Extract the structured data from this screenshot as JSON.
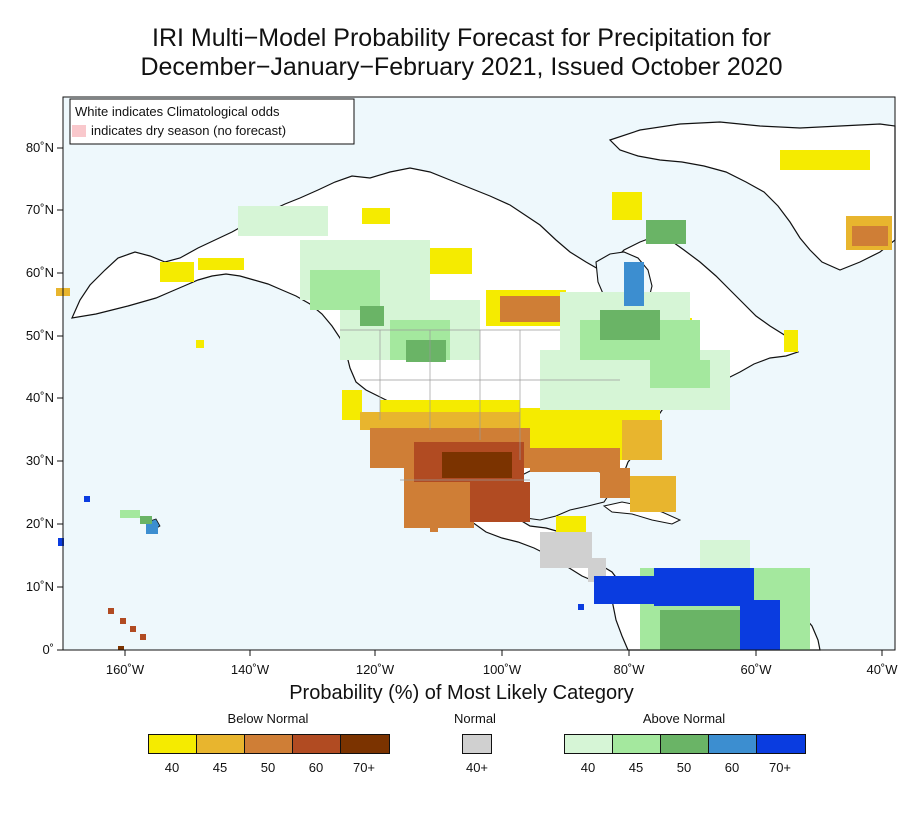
{
  "title_line1": "IRI Multi−Model Probability Forecast for Precipitation for",
  "title_line2": "December−January−February 2021, Issued October 2020",
  "map": {
    "inset_legend": {
      "line1": "White indicates Climatological odds",
      "line2": "indicates dry season (no forecast)",
      "dry_color": "#f9c8cc"
    },
    "lat_labels": [
      "80˚N",
      "70˚N",
      "60˚N",
      "50˚N",
      "40˚N",
      "30˚N",
      "20˚N",
      "10˚N",
      "0˚"
    ],
    "lon_labels": [
      "160˚W",
      "140˚W",
      "120˚W",
      "100˚W",
      "80˚W",
      "60˚W",
      "40˚W"
    ],
    "ocean_color": "#eef8fc",
    "land_color": "#ffffff"
  },
  "legend": {
    "title": "Probability (%) of Most Likely Category",
    "below": {
      "label": "Below Normal",
      "levels": [
        "40",
        "45",
        "50",
        "60",
        "70+"
      ],
      "colors": [
        "#f5eb00",
        "#e8b52e",
        "#cf7e36",
        "#b14b22",
        "#7b3300"
      ]
    },
    "normal": {
      "label": "Normal",
      "levels": [
        "40+"
      ],
      "colors": [
        "#d0d0d0"
      ]
    },
    "above": {
      "label": "Above Normal",
      "levels": [
        "40",
        "45",
        "50",
        "60",
        "70+"
      ],
      "colors": [
        "#d6f5d6",
        "#a4e89e",
        "#6ab466",
        "#3c8ed0",
        "#0a3ce0"
      ]
    }
  }
}
